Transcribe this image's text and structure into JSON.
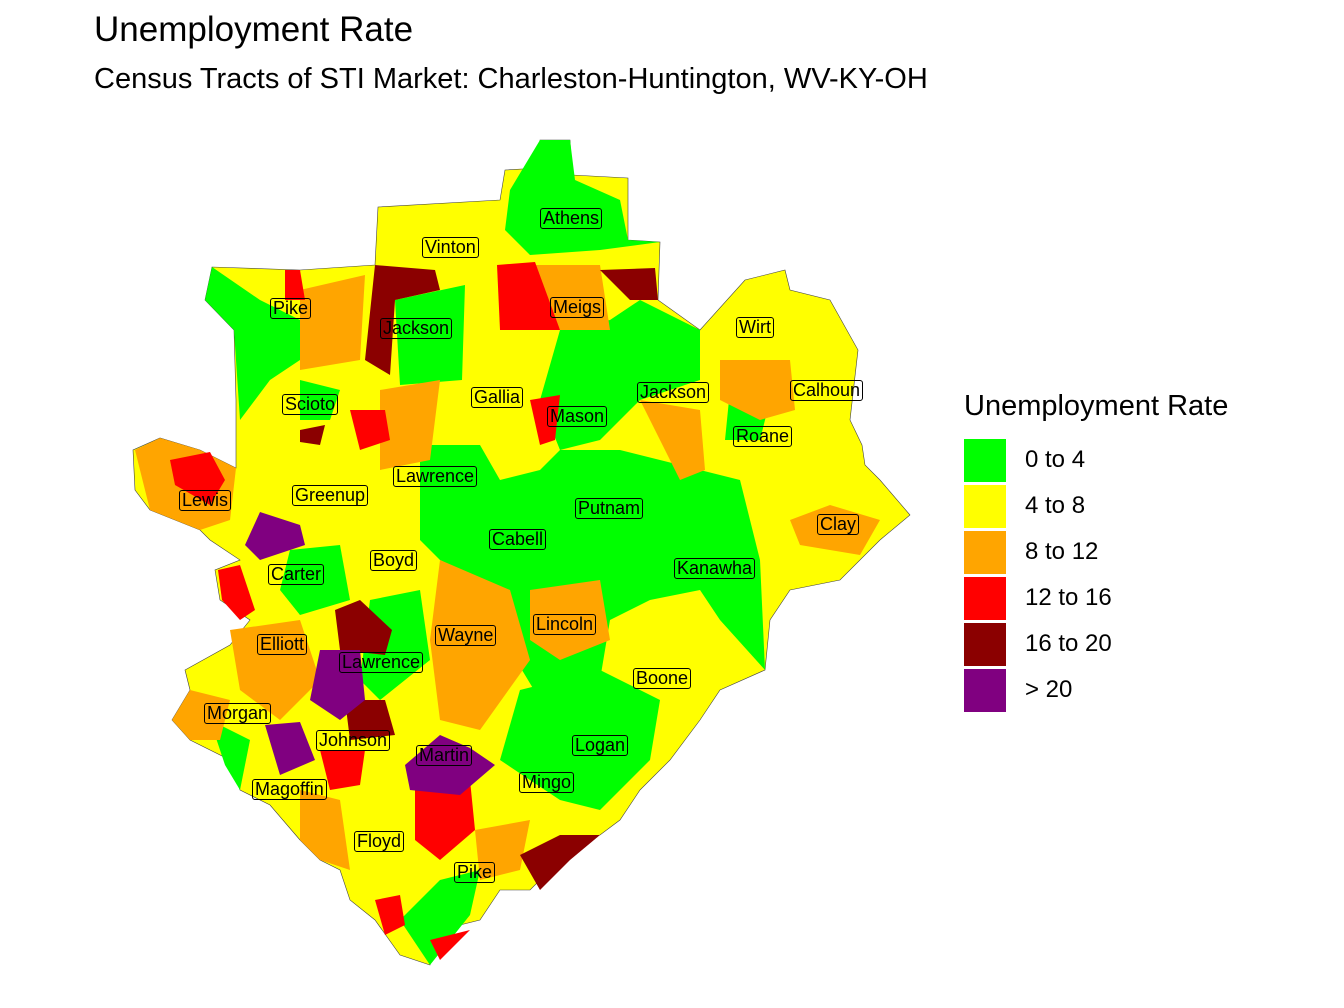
{
  "title": "Unemployment Rate",
  "subtitle": "Census Tracts of STI Market: Charleston-Huntington, WV-KY-OH",
  "legend": {
    "title": "Unemployment Rate",
    "items": [
      {
        "label": "0 to 4",
        "color": "#00FF00"
      },
      {
        "label": "4 to 8",
        "color": "#FFFF00"
      },
      {
        "label": "8 to 12",
        "color": "#FFA500"
      },
      {
        "label": "12 to 16",
        "color": "#FF0000"
      },
      {
        "label": "16 to 20",
        "color": "#8B0000"
      },
      {
        "label": "> 20",
        "color": "#800080"
      }
    ]
  },
  "counties": [
    "Athens",
    "Vinton",
    "Pike",
    "Jackson",
    "Meigs",
    "Wirt",
    "Gallia",
    "Scioto",
    "Mason",
    "Jackson",
    "Calhoun",
    "Roane",
    "Lawrence",
    "Lewis",
    "Greenup",
    "Putnam",
    "Clay",
    "Cabell",
    "Boyd",
    "Carter",
    "Kanawha",
    "Lincoln",
    "Wayne",
    "Elliott",
    "Lawrence",
    "Boone",
    "Morgan",
    "Johnson",
    "Logan",
    "Martin",
    "Mingo",
    "Magoffin",
    "Floyd",
    "Pike"
  ]
}
